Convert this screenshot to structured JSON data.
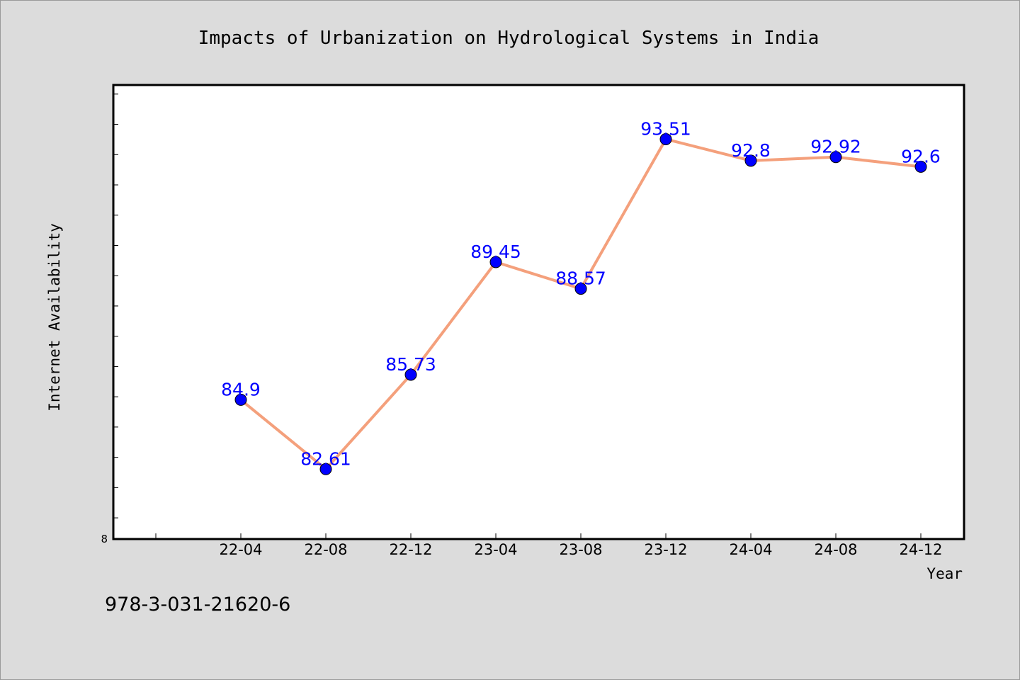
{
  "colors": {
    "background": "#dcdcdc",
    "plot_background": "#ffffff",
    "line": "#f4a07c",
    "marker": "#0000ff",
    "data_label": "#0000ff"
  },
  "footer": {
    "text": "978-3-031-21620-6"
  },
  "chart_data": {
    "type": "line",
    "title": "Impacts of Urbanization on Hydrological Systems in India",
    "xlabel": "Year",
    "ylabel": "Internet Availability",
    "categories": [
      "22-04",
      "22-08",
      "22-12",
      "23-04",
      "23-08",
      "23-12",
      "24-04",
      "24-08",
      "24-12"
    ],
    "values": [
      84.9,
      82.61,
      85.73,
      89.45,
      88.57,
      93.51,
      92.8,
      92.92,
      92.6
    ],
    "data_labels": [
      "84.9",
      "82.61",
      "85.73",
      "89.45",
      "88.57",
      "93.51",
      "92.8",
      "92.92",
      "92.6"
    ],
    "y_tick_labels": [
      "8"
    ],
    "ylim": [
      80.3,
      95.3
    ],
    "y_minor_step": 1,
    "grid": false,
    "legend": "none"
  }
}
